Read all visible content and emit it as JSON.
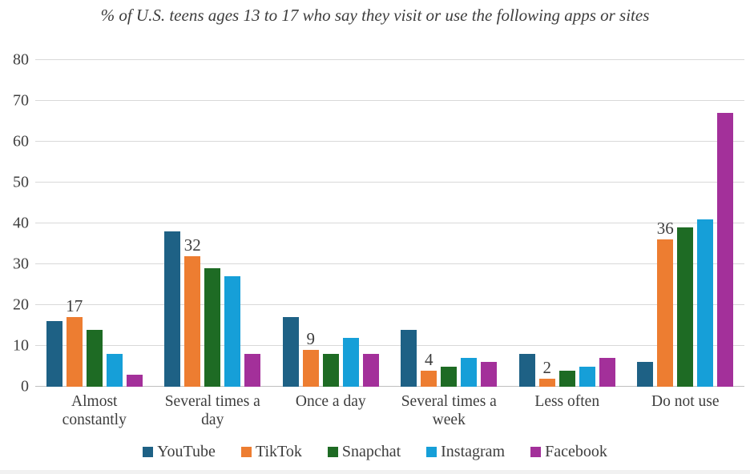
{
  "title": "% of U.S. teens ages 13 to 17 who say they visit or use the following apps or sites",
  "colors": {
    "gridline": "#d9d9d9",
    "axis_line": "#bfbfbf",
    "text": "#3d3d3d"
  },
  "chart_data": {
    "type": "bar",
    "title": "% of U.S. teens ages 13 to 17 who say they visit or use the following apps or sites",
    "categories": [
      "Almost constantly",
      "Several times a day",
      "Once a day",
      "Several times a week",
      "Less often",
      "Do not use"
    ],
    "series": [
      {
        "name": "YouTube",
        "color": "#1E6185",
        "values": [
          16,
          38,
          17,
          14,
          8,
          6
        ]
      },
      {
        "name": "TikTok",
        "color": "#ED7D31",
        "values": [
          17,
          32,
          9,
          4,
          2,
          36
        ],
        "data_labels": [
          "17",
          "32",
          "9",
          "4",
          "2",
          "36"
        ]
      },
      {
        "name": "Snapchat",
        "color": "#1E6B24",
        "values": [
          14,
          29,
          8,
          5,
          4,
          39
        ]
      },
      {
        "name": "Instagram",
        "color": "#169FD8",
        "values": [
          8,
          27,
          12,
          7,
          5,
          41
        ]
      },
      {
        "name": "Facebook",
        "color": "#A3309A",
        "values": [
          3,
          8,
          8,
          6,
          7,
          67
        ]
      }
    ],
    "ylim": [
      0,
      80
    ],
    "yticks": [
      0,
      10,
      20,
      30,
      40,
      50,
      60,
      70,
      80
    ],
    "xlabel": "",
    "ylabel": "",
    "grid": true,
    "legend_position": "bottom",
    "legend_entries": [
      "YouTube",
      "TikTok",
      "Snapchat",
      "Instagram",
      "Facebook"
    ]
  }
}
